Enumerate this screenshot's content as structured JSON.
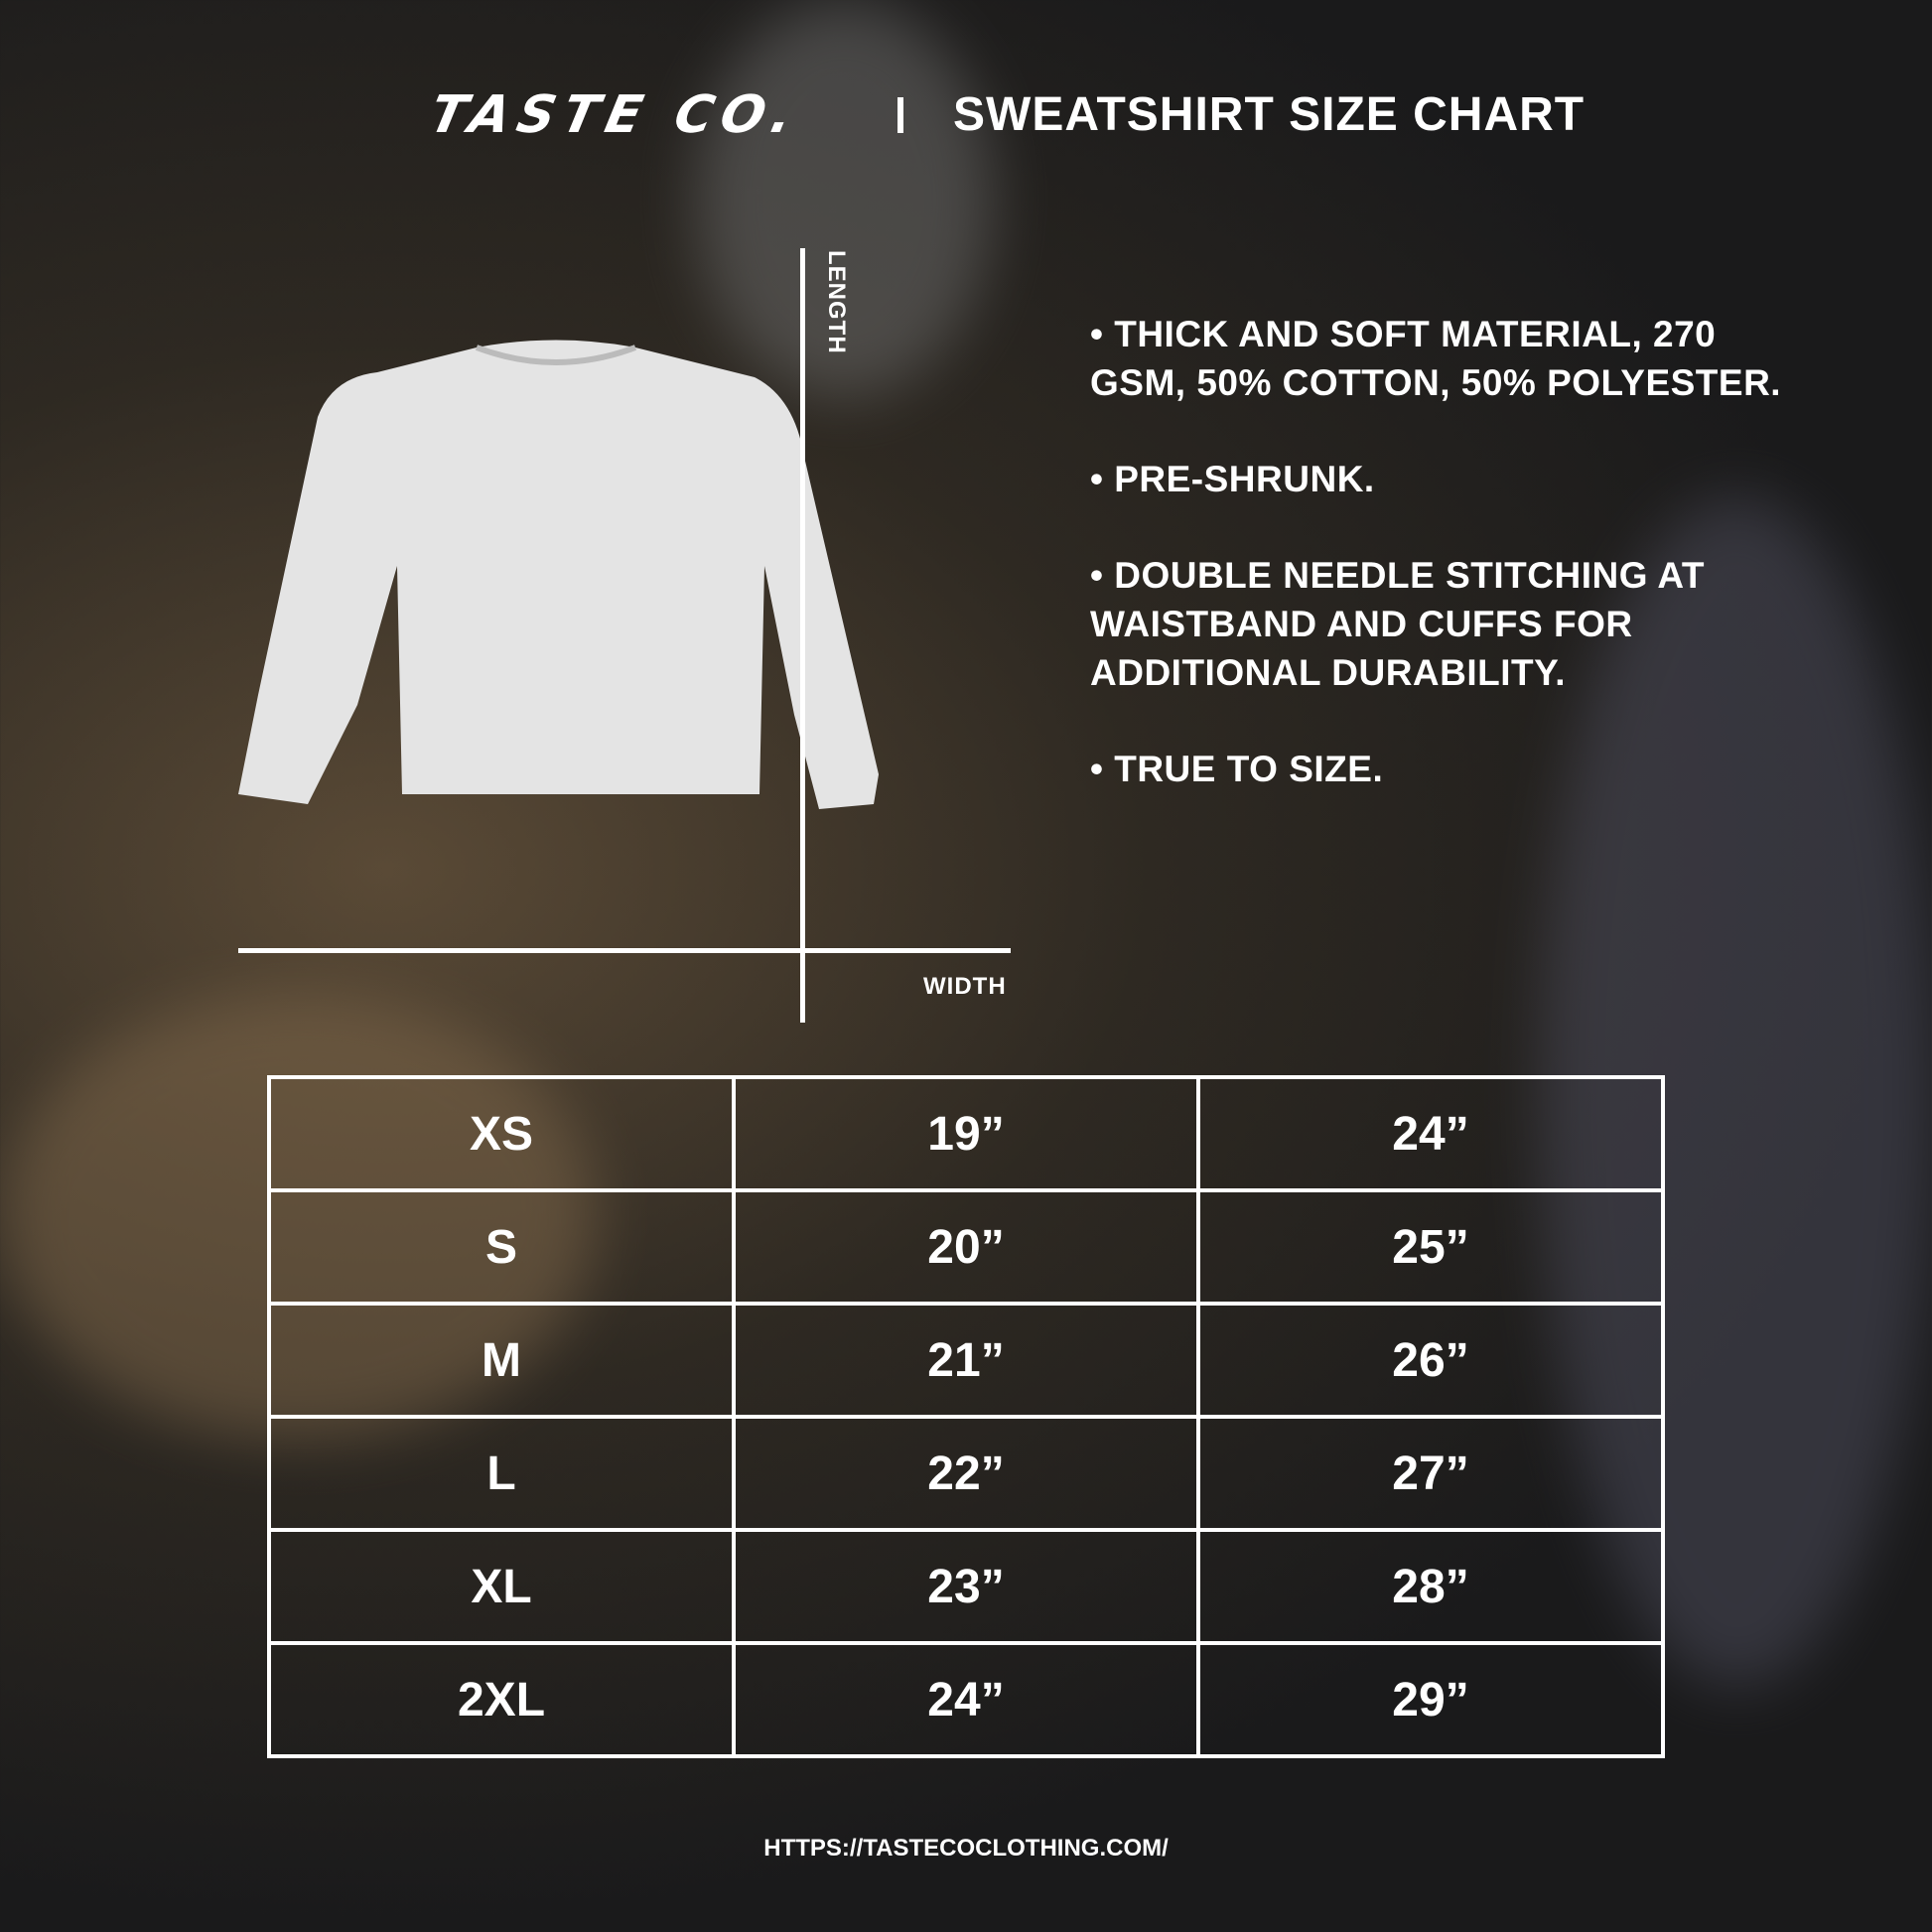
{
  "header": {
    "brand": "TASTE CO.",
    "separator": "|",
    "title": "SWEATSHIRT SIZE CHART"
  },
  "diagram": {
    "length_label": "LENGTH",
    "width_label": "WIDTH"
  },
  "features": [
    "• THICK AND SOFT MATERIAL, 270 GSM, 50% COTTON, 50% POLYESTER.",
    "• PRE-SHRUNK.",
    "• DOUBLE NEEDLE STITCHING AT WAISTBAND AND CUFFS FOR ADDITIONAL DURABILITY.",
    "• TRUE TO SIZE."
  ],
  "size_table": {
    "rows": [
      [
        "XS",
        "19”",
        "24”"
      ],
      [
        "S",
        "20”",
        "25”"
      ],
      [
        "M",
        "21”",
        "26”"
      ],
      [
        "L",
        "22”",
        "27”"
      ],
      [
        "XL",
        "23”",
        "28”"
      ],
      [
        "2XL",
        "24”",
        "29”"
      ]
    ]
  },
  "footer": {
    "url": "HTTPS://TASTECOCLOTHING.COM/"
  }
}
